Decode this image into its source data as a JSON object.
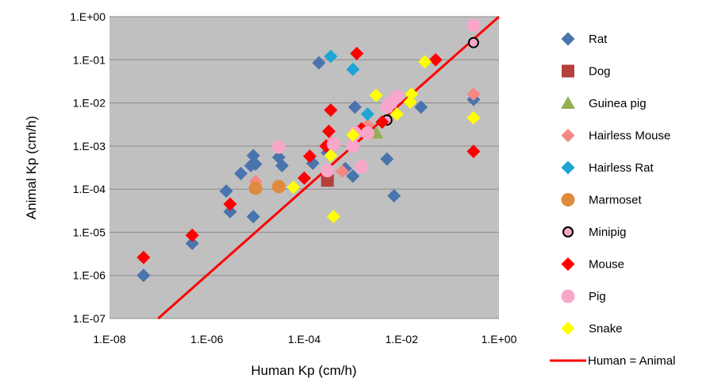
{
  "chart_data": {
    "type": "scatter",
    "xlabel": "Human Kp (cm/h)",
    "ylabel": "Animal Kp (cm/h)",
    "x_scale": "log",
    "y_scale": "log",
    "xlim": [
      1e-08,
      1
    ],
    "ylim": [
      1e-07,
      1
    ],
    "x_ticks": [
      "1.E-08",
      "1.E-06",
      "1.E-04",
      "1.E-02",
      "1.E+00"
    ],
    "y_ticks": [
      "1.E+00",
      "1.E-01",
      "1.E-02",
      "1.E-03",
      "1.E-04",
      "1.E-05",
      "1.E-06",
      "1.E-07"
    ],
    "grid": "horizontal",
    "plot_background": "#c0c0c0",
    "legend_position": "right",
    "series": [
      {
        "name": "Rat",
        "marker": "diamond",
        "color": "#4a74ad",
        "points": [
          [
            5e-08,
            1e-06
          ],
          [
            5e-07,
            5.5e-06
          ],
          [
            2.5e-06,
            9e-05
          ],
          [
            3e-06,
            3e-05
          ],
          [
            5e-06,
            0.00023
          ],
          [
            8e-06,
            0.00035
          ],
          [
            9e-06,
            0.0006
          ],
          [
            1e-05,
            0.00038
          ],
          [
            9e-06,
            2.3e-05
          ],
          [
            3e-05,
            0.00055
          ],
          [
            3.5e-05,
            0.00035
          ],
          [
            0.00015,
            0.0004
          ],
          [
            0.0002,
            0.085
          ],
          [
            0.0003,
            0.0007
          ],
          [
            0.0007,
            0.0003
          ],
          [
            0.001,
            0.0002
          ],
          [
            0.0011,
            0.008
          ],
          [
            0.002,
            0.003
          ],
          [
            0.005,
            0.0005
          ],
          [
            0.007,
            7e-05
          ],
          [
            0.025,
            0.008
          ],
          [
            0.3,
            0.012
          ]
        ]
      },
      {
        "name": "Dog",
        "marker": "square",
        "color": "#b5403d",
        "points": [
          [
            0.0003,
            0.00016
          ]
        ]
      },
      {
        "name": "Guinea pig",
        "marker": "triangle",
        "color": "#93b153",
        "points": [
          [
            0.003,
            0.002
          ]
        ]
      },
      {
        "name": "Hairless Mouse",
        "marker": "diamond",
        "color": "#f78784",
        "points": [
          [
            1e-05,
            0.00015
          ],
          [
            0.00035,
            0.0012
          ],
          [
            0.0006,
            0.00026
          ],
          [
            0.002,
            0.003
          ],
          [
            0.006,
            0.01
          ],
          [
            0.3,
            0.016
          ]
        ]
      },
      {
        "name": "Hairless Rat",
        "marker": "diamond",
        "color": "#1ea5d6",
        "points": [
          [
            0.00035,
            0.12
          ],
          [
            0.001,
            0.06
          ],
          [
            0.002,
            0.0055
          ]
        ]
      },
      {
        "name": "Marmoset",
        "marker": "circle",
        "color": "#df8b3e",
        "points": [
          [
            1e-05,
            0.000105
          ],
          [
            3e-05,
            0.000115
          ]
        ]
      },
      {
        "name": "Minipig",
        "marker": "circle-outline",
        "color": "#f5a6c8",
        "points": [
          [
            0.005,
            0.004
          ],
          [
            0.3,
            0.25
          ]
        ]
      },
      {
        "name": "Mouse",
        "marker": "diamond",
        "color": "#ff0000",
        "points": [
          [
            5e-08,
            2.6e-06
          ],
          [
            5e-07,
            8.5e-06
          ],
          [
            3e-06,
            4.5e-05
          ],
          [
            0.0001,
            0.00018
          ],
          [
            0.00013,
            0.00058
          ],
          [
            0.00028,
            0.001
          ],
          [
            0.00032,
            0.0022
          ],
          [
            0.00035,
            0.0068
          ],
          [
            0.0012,
            0.14
          ],
          [
            0.0015,
            0.0025
          ],
          [
            0.004,
            0.0036
          ],
          [
            0.05,
            0.1
          ],
          [
            0.3,
            0.00075
          ]
        ]
      },
      {
        "name": "Pig",
        "marker": "circle",
        "color": "#f9a6cb",
        "points": [
          [
            3e-05,
            0.00095
          ],
          [
            0.0003,
            0.00027
          ],
          [
            0.0004,
            0.0011
          ],
          [
            0.001,
            0.001
          ],
          [
            0.0011,
            0.002
          ],
          [
            0.0015,
            0.00033
          ],
          [
            0.002,
            0.002
          ],
          [
            0.005,
            0.008
          ],
          [
            0.006,
            0.01
          ],
          [
            0.008,
            0.014
          ],
          [
            0.3,
            0.62
          ]
        ]
      },
      {
        "name": "Snake",
        "marker": "diamond",
        "color": "#ffff00",
        "points": [
          [
            6e-05,
            0.00011
          ],
          [
            0.00035,
            0.0006
          ],
          [
            0.0004,
            2.3e-05
          ],
          [
            0.001,
            0.0018
          ],
          [
            0.003,
            0.015
          ],
          [
            0.008,
            0.0055
          ],
          [
            0.015,
            0.0105
          ],
          [
            0.016,
            0.016
          ],
          [
            0.03,
            0.09
          ],
          [
            0.3,
            0.0045
          ]
        ]
      }
    ],
    "reference_line": {
      "name": "Human = Animal",
      "color": "#ff0000",
      "from": [
        1e-07,
        1e-07
      ],
      "to": [
        1,
        1
      ]
    }
  }
}
